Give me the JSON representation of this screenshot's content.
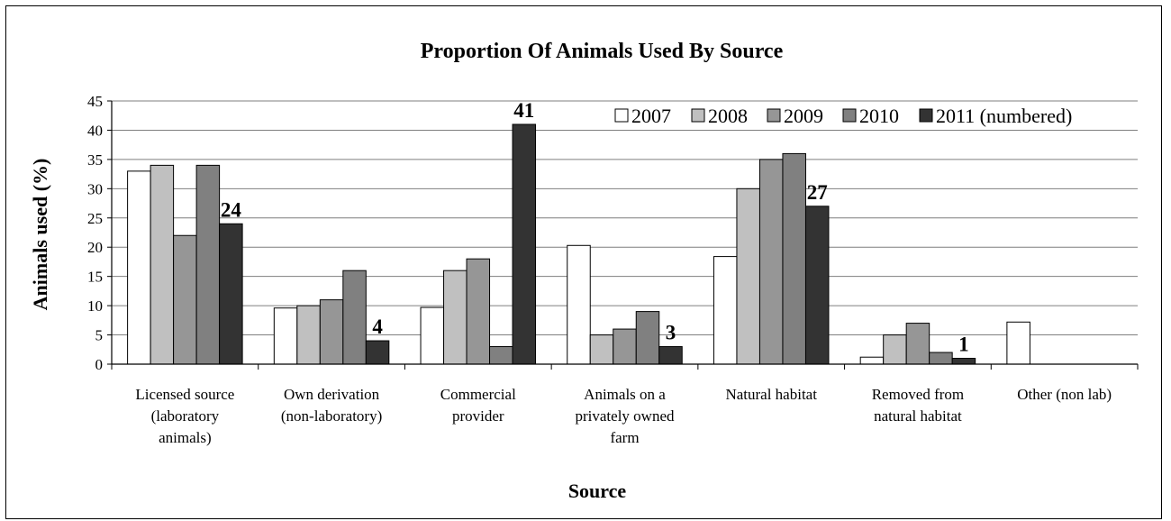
{
  "chart_data": {
    "type": "bar",
    "title": "Proportion Of Animals Used By Source",
    "xlabel": "Source",
    "ylabel": "Animals used (%)",
    "ylim": [
      0,
      45
    ],
    "yticks": [
      "0",
      "5",
      "10",
      "15",
      "20",
      "25",
      "30",
      "35",
      "40",
      "45"
    ],
    "grid": true,
    "legend_position": "top-right",
    "categories": [
      "Licensed source (laboratory animals)",
      "Own derivation (non-laboratory)",
      "Commercial provider",
      "Animals on a privately owned farm",
      "Natural habitat",
      "Removed from natural habitat",
      "Other (non lab)"
    ],
    "category_lines": [
      [
        "Licensed source",
        "(laboratory",
        "animals)"
      ],
      [
        "Own derivation",
        "(non-laboratory)"
      ],
      [
        "Commercial",
        "provider"
      ],
      [
        "Animals on a",
        "privately owned",
        "farm"
      ],
      [
        "Natural habitat"
      ],
      [
        "Removed from",
        "natural habitat"
      ],
      [
        "Other (non lab)"
      ]
    ],
    "series": [
      {
        "name": "2007",
        "color": "#ffffff",
        "values": [
          33,
          9.6,
          9.7,
          20.3,
          18.4,
          1.2,
          7.2
        ]
      },
      {
        "name": "2008",
        "color": "#c0c0c0",
        "values": [
          34,
          10,
          16,
          5,
          30,
          5,
          0
        ]
      },
      {
        "name": "2009",
        "color": "#969696",
        "values": [
          22,
          11,
          18,
          6,
          35,
          7,
          0
        ]
      },
      {
        "name": "2010",
        "color": "#808080",
        "values": [
          34,
          16,
          3,
          9,
          36,
          2,
          0
        ]
      },
      {
        "name": "2011 (numbered)",
        "color": "#333333",
        "values": [
          24,
          4,
          41,
          3,
          27,
          1,
          0
        ]
      }
    ],
    "data_labels": [
      "24",
      "4",
      "41",
      "3",
      "27",
      "1"
    ]
  }
}
